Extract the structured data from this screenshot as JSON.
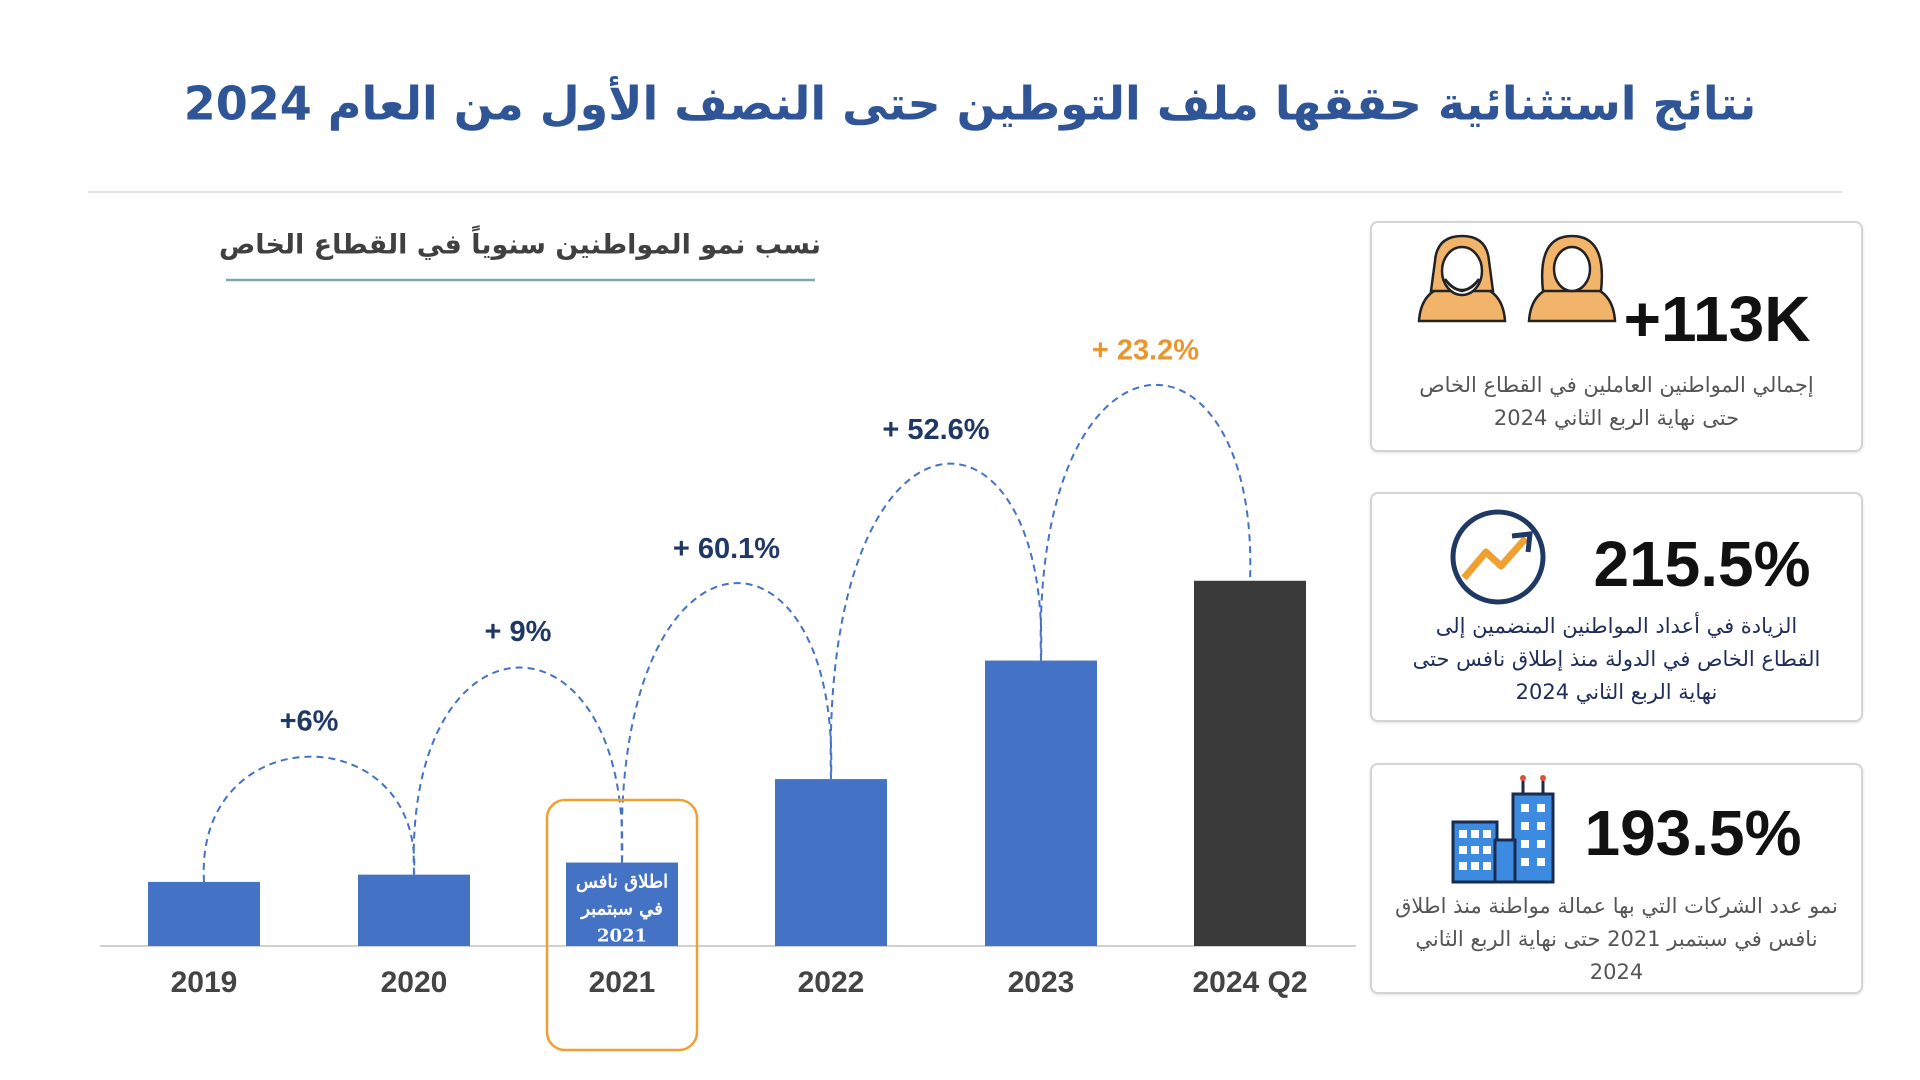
{
  "header": {
    "title": "نتائج استثنائية حققها ملف التوطين  حتى النصف الأول من العام 2024"
  },
  "chart_data": {
    "type": "bar",
    "subtitle": "نسب نمو المواطنين سنوياً في القطاع الخاص",
    "categories": [
      "2019",
      "2020",
      "2021",
      "2022",
      "2023",
      "2024 Q2"
    ],
    "values": [
      53,
      59,
      69,
      138,
      236,
      302
    ],
    "colors": [
      "#4472c4",
      "#4472c4",
      "#4472c4",
      "#4472c4",
      "#4472c4",
      "#3a3a3a"
    ],
    "ylim": [
      0,
      320
    ],
    "growth_labels": [
      "+6%",
      "+ 9%",
      "+ 60.1%",
      "+ 52.6%",
      "+ 23.2%"
    ],
    "growth_label_colors": [
      "#1f3864",
      "#1f3864",
      "#1f3864",
      "#1f3864",
      "#e8962e"
    ],
    "bar_note": [
      "اطلاق نافس",
      "في سبتمبر",
      "2021"
    ],
    "bar_note_index": 2,
    "highlight_color": "#f0a030"
  },
  "cards": [
    {
      "stat": "+113K",
      "text": [
        "إجمالي المواطنين العاملين في القطاع الخاص",
        "حتى نهاية الربع الثاني 2024"
      ]
    },
    {
      "stat": "215.5%",
      "text": [
        "الزيادة في أعداد المواطنين المنضمين إلى",
        "القطاع الخاص في الدولة منذ إطلاق نافس حتى",
        "نهاية الربع الثاني 2024"
      ]
    },
    {
      "stat": "193.5%",
      "text": [
        "نمو عدد الشركات التي بها عمالة مواطنة منذ اطلاق",
        "نافس في سبتمبر 2021 حتى نهاية الربع الثاني",
        "2024"
      ]
    }
  ]
}
